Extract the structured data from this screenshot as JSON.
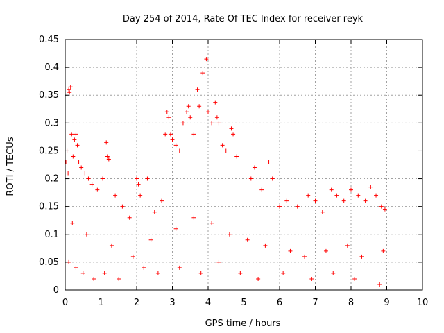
{
  "chart_data": {
    "type": "scatter",
    "title": "Day 254 of 2014, Rate Of TEC Index for receiver reyk",
    "xlabel": "GPS time / hours",
    "ylabel": "ROTI / TECUs",
    "xlim": [
      0,
      10
    ],
    "ylim": [
      0,
      0.45
    ],
    "xticks": [
      "0",
      "1",
      "2",
      "3",
      "4",
      "5",
      "6",
      "7",
      "8",
      "9",
      "10"
    ],
    "yticks": [
      "0",
      "0.05",
      "0.1",
      "0.15",
      "0.2",
      "0.25",
      "0.3",
      "0.35",
      "0.4",
      "0.45"
    ],
    "grid": true,
    "marker": "+",
    "color": "#ff0000",
    "series": [
      {
        "name": "ROTI",
        "points": [
          [
            0.02,
            0.23
          ],
          [
            0.05,
            0.25
          ],
          [
            0.08,
            0.21
          ],
          [
            0.1,
            0.36
          ],
          [
            0.12,
            0.355
          ],
          [
            0.15,
            0.365
          ],
          [
            0.18,
            0.28
          ],
          [
            0.22,
            0.24
          ],
          [
            0.26,
            0.27
          ],
          [
            0.3,
            0.28
          ],
          [
            0.34,
            0.26
          ],
          [
            0.38,
            0.23
          ],
          [
            0.45,
            0.22
          ],
          [
            0.55,
            0.21
          ],
          [
            0.65,
            0.2
          ],
          [
            0.75,
            0.19
          ],
          [
            0.9,
            0.18
          ],
          [
            1.05,
            0.2
          ],
          [
            1.15,
            0.265
          ],
          [
            1.18,
            0.24
          ],
          [
            1.22,
            0.235
          ],
          [
            1.4,
            0.17
          ],
          [
            1.6,
            0.15
          ],
          [
            1.8,
            0.13
          ],
          [
            2.0,
            0.2
          ],
          [
            2.05,
            0.19
          ],
          [
            2.1,
            0.17
          ],
          [
            2.3,
            0.2
          ],
          [
            2.5,
            0.14
          ],
          [
            2.7,
            0.16
          ],
          [
            2.8,
            0.28
          ],
          [
            2.85,
            0.32
          ],
          [
            2.9,
            0.31
          ],
          [
            2.95,
            0.28
          ],
          [
            3.0,
            0.27
          ],
          [
            3.1,
            0.26
          ],
          [
            3.2,
            0.25
          ],
          [
            3.3,
            0.3
          ],
          [
            3.4,
            0.32
          ],
          [
            3.45,
            0.33
          ],
          [
            3.5,
            0.31
          ],
          [
            3.6,
            0.28
          ],
          [
            3.7,
            0.36
          ],
          [
            3.75,
            0.33
          ],
          [
            3.85,
            0.39
          ],
          [
            3.95,
            0.415
          ],
          [
            4.0,
            0.32
          ],
          [
            4.1,
            0.3
          ],
          [
            4.2,
            0.337
          ],
          [
            4.25,
            0.31
          ],
          [
            4.3,
            0.3
          ],
          [
            4.4,
            0.26
          ],
          [
            4.5,
            0.25
          ],
          [
            4.65,
            0.29
          ],
          [
            4.7,
            0.28
          ],
          [
            4.8,
            0.24
          ],
          [
            5.0,
            0.23
          ],
          [
            5.2,
            0.2
          ],
          [
            5.3,
            0.22
          ],
          [
            5.5,
            0.18
          ],
          [
            5.7,
            0.23
          ],
          [
            5.8,
            0.2
          ],
          [
            6.0,
            0.15
          ],
          [
            6.2,
            0.16
          ],
          [
            6.5,
            0.15
          ],
          [
            6.8,
            0.17
          ],
          [
            7.0,
            0.16
          ],
          [
            7.2,
            0.14
          ],
          [
            7.45,
            0.18
          ],
          [
            7.6,
            0.17
          ],
          [
            7.8,
            0.16
          ],
          [
            8.0,
            0.18
          ],
          [
            8.2,
            0.17
          ],
          [
            8.4,
            0.16
          ],
          [
            8.55,
            0.185
          ],
          [
            8.7,
            0.17
          ],
          [
            8.85,
            0.15
          ],
          [
            8.95,
            0.145
          ],
          [
            0.1,
            0.05
          ],
          [
            0.3,
            0.04
          ],
          [
            0.5,
            0.03
          ],
          [
            0.8,
            0.02
          ],
          [
            1.1,
            0.03
          ],
          [
            1.5,
            0.02
          ],
          [
            2.2,
            0.04
          ],
          [
            2.6,
            0.03
          ],
          [
            3.2,
            0.04
          ],
          [
            3.8,
            0.03
          ],
          [
            4.3,
            0.05
          ],
          [
            4.9,
            0.03
          ],
          [
            5.4,
            0.02
          ],
          [
            6.1,
            0.03
          ],
          [
            6.9,
            0.02
          ],
          [
            7.5,
            0.03
          ],
          [
            8.1,
            0.02
          ],
          [
            8.8,
            0.01
          ],
          [
            0.2,
            0.12
          ],
          [
            0.6,
            0.1
          ],
          [
            1.3,
            0.08
          ],
          [
            1.9,
            0.06
          ],
          [
            2.4,
            0.09
          ],
          [
            3.1,
            0.11
          ],
          [
            3.6,
            0.13
          ],
          [
            4.1,
            0.12
          ],
          [
            4.6,
            0.1
          ],
          [
            5.1,
            0.09
          ],
          [
            5.6,
            0.08
          ],
          [
            6.3,
            0.07
          ],
          [
            6.7,
            0.06
          ],
          [
            7.3,
            0.07
          ],
          [
            7.9,
            0.08
          ],
          [
            8.3,
            0.06
          ],
          [
            8.9,
            0.07
          ]
        ]
      }
    ]
  }
}
